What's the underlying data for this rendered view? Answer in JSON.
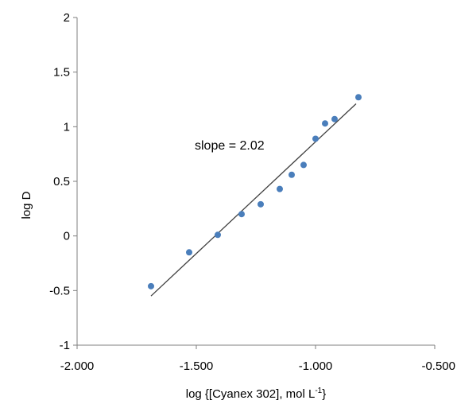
{
  "chart_data": {
    "type": "scatter",
    "title": "",
    "xlabel_main": "log {[Cyanex 302], mol L",
    "xlabel_sup": "-1",
    "xlabel_end": "}",
    "ylabel": "log D",
    "xlim": [
      -2.0,
      -0.5
    ],
    "ylim": [
      -1,
      2
    ],
    "grid": false,
    "legend": "none",
    "x_ticks": [
      -2.0,
      -1.5,
      -1.0,
      -0.5
    ],
    "x_tick_labels": [
      "-2.000",
      "-1.500",
      "-1.000",
      "-0.500"
    ],
    "y_ticks": [
      -1,
      -0.5,
      0,
      0.5,
      1,
      1.5,
      2
    ],
    "y_tick_labels": [
      "-1",
      "-0.5",
      "0",
      "0.5",
      "1",
      "1.5",
      "2"
    ],
    "series": [
      {
        "type": "scatter",
        "color": "#4A7EBB",
        "x": [
          -1.69,
          -1.53,
          -1.41,
          -1.31,
          -1.23,
          -1.15,
          -1.1,
          -1.05,
          -1.0,
          -0.96,
          -0.92,
          -0.82
        ],
        "y": [
          -0.46,
          -0.15,
          0.01,
          0.2,
          0.29,
          0.43,
          0.56,
          0.65,
          0.89,
          1.03,
          1.07,
          1.27
        ]
      }
    ],
    "fit_line": {
      "color": "#404040",
      "x": [
        -1.69,
        -0.83
      ],
      "y": [
        -0.55,
        1.21
      ]
    },
    "annotation": "slope = 2.02"
  }
}
